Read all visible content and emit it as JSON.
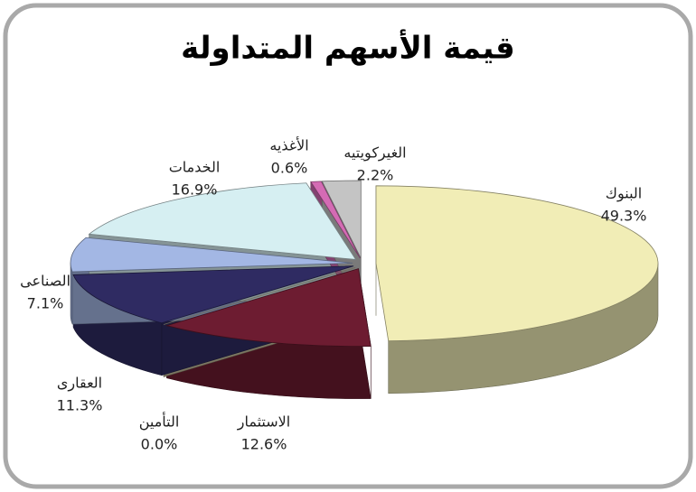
{
  "chart_data": {
    "type": "pie3d",
    "title": "قيمة الأسهم المتداولة",
    "categories": [
      "البنوك",
      "الاستثمار",
      "التأمين",
      "العقارى",
      "الصناعى",
      "الخدمات",
      "الأغذيه",
      "الغيركويتيه"
    ],
    "values": [
      49.3,
      12.6,
      0.0,
      11.3,
      7.1,
      16.9,
      0.6,
      2.2
    ],
    "value_labels": [
      "49.3%",
      "12.6%",
      "0.0%",
      "11.3%",
      "7.1%",
      "16.9%",
      "0.6%",
      "2.2%"
    ],
    "colors": [
      "#f1edb6",
      "#6d1c31",
      "#c9c1a0",
      "#2f2b62",
      "#a3b7e4",
      "#d6eff2",
      "#d46bb4",
      "#c4c4c4"
    ]
  }
}
